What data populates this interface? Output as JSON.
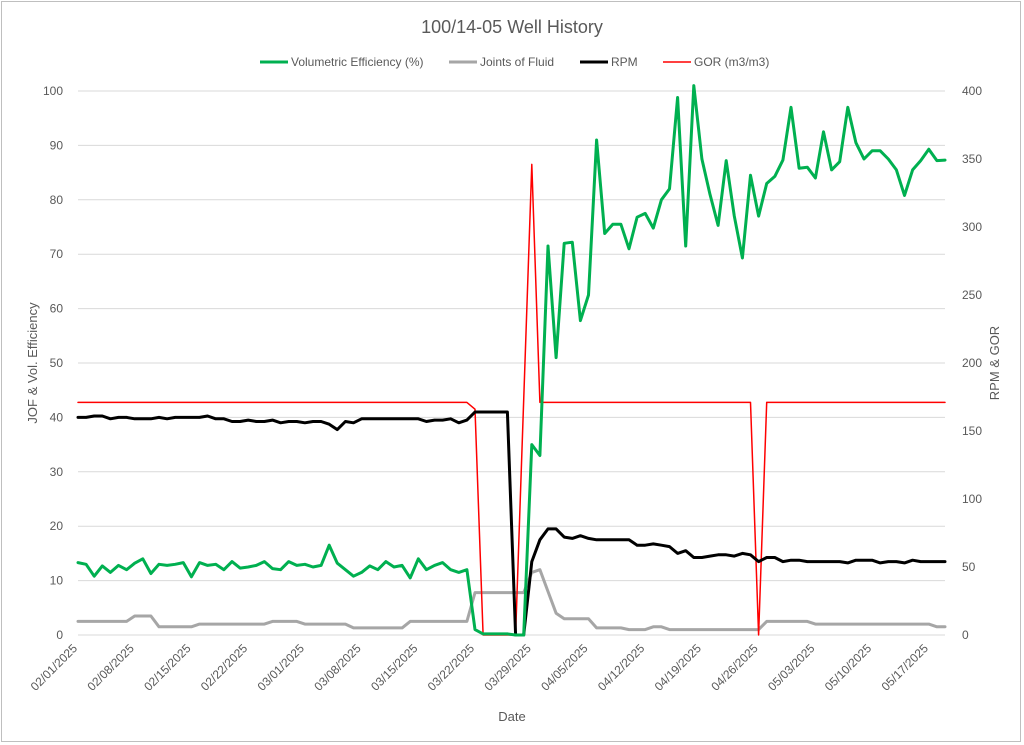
{
  "chart_data": {
    "type": "line",
    "title": "100/14-05 Well History",
    "xlabel": "Date",
    "ylabel_left": "JOF & Vol. Efficiency",
    "ylabel_right": "RPM & GOR",
    "ylim_left": [
      0,
      100
    ],
    "ylim_right": [
      0,
      400
    ],
    "y_ticks_left": [
      "0",
      "10",
      "20",
      "30",
      "40",
      "50",
      "60",
      "70",
      "80",
      "90",
      "100"
    ],
    "y_ticks_right": [
      "0",
      "50",
      "100",
      "150",
      "200",
      "250",
      "300",
      "350",
      "400"
    ],
    "x_start": "2025-02-01",
    "x_end": "2025-05-19",
    "x_ticks": [
      "02/01/2025",
      "02/08/2025",
      "02/15/2025",
      "02/22/2025",
      "03/01/2025",
      "03/08/2025",
      "03/15/2025",
      "03/22/2025",
      "03/29/2025",
      "04/05/2025",
      "04/12/2025",
      "04/19/2025",
      "04/26/2025",
      "05/03/2025",
      "05/10/2025",
      "05/17/2025"
    ],
    "gridlines": "horizontal",
    "legend_position": "top",
    "series": [
      {
        "name": "Volumetric Efficiency (%)",
        "axis": "left",
        "color": "#00b050",
        "points": [
          [
            "2025-02-01",
            13.3
          ],
          [
            "2025-02-02",
            13
          ],
          [
            "2025-02-03",
            10.8
          ],
          [
            "2025-02-04",
            12.7
          ],
          [
            "2025-02-05",
            11.5
          ],
          [
            "2025-02-06",
            12.8
          ],
          [
            "2025-02-07",
            12
          ],
          [
            "2025-02-08",
            13.2
          ],
          [
            "2025-02-09",
            14
          ],
          [
            "2025-02-10",
            11.3
          ],
          [
            "2025-02-11",
            13
          ],
          [
            "2025-02-12",
            12.8
          ],
          [
            "2025-02-13",
            13
          ],
          [
            "2025-02-14",
            13.3
          ],
          [
            "2025-02-15",
            10.7
          ],
          [
            "2025-02-16",
            13.3
          ],
          [
            "2025-02-17",
            12.8
          ],
          [
            "2025-02-18",
            13
          ],
          [
            "2025-02-19",
            12
          ],
          [
            "2025-02-20",
            13.5
          ],
          [
            "2025-02-21",
            12.3
          ],
          [
            "2025-02-22",
            12.5
          ],
          [
            "2025-02-23",
            12.8
          ],
          [
            "2025-02-24",
            13.5
          ],
          [
            "2025-02-25",
            12.2
          ],
          [
            "2025-02-26",
            12
          ],
          [
            "2025-02-27",
            13.5
          ],
          [
            "2025-02-28",
            12.8
          ],
          [
            "2025-03-01",
            13
          ],
          [
            "2025-03-02",
            12.5
          ],
          [
            "2025-03-03",
            12.8
          ],
          [
            "2025-03-04",
            16.5
          ],
          [
            "2025-03-05",
            13.2
          ],
          [
            "2025-03-06",
            12
          ],
          [
            "2025-03-07",
            10.8
          ],
          [
            "2025-03-08",
            11.5
          ],
          [
            "2025-03-09",
            12.7
          ],
          [
            "2025-03-10",
            12
          ],
          [
            "2025-03-11",
            13.5
          ],
          [
            "2025-03-12",
            12.5
          ],
          [
            "2025-03-13",
            12.8
          ],
          [
            "2025-03-14",
            10.5
          ],
          [
            "2025-03-15",
            14
          ],
          [
            "2025-03-16",
            12
          ],
          [
            "2025-03-17",
            12.8
          ],
          [
            "2025-03-18",
            13.3
          ],
          [
            "2025-03-19",
            12
          ],
          [
            "2025-03-20",
            11.5
          ],
          [
            "2025-03-21",
            12
          ],
          [
            "2025-03-22",
            1
          ],
          [
            "2025-03-23",
            0.2
          ],
          [
            "2025-03-24",
            0.2
          ],
          [
            "2025-03-25",
            0.2
          ],
          [
            "2025-03-26",
            0.2
          ],
          [
            "2025-03-27",
            0
          ],
          [
            "2025-03-28",
            0
          ],
          [
            "2025-03-29",
            35
          ],
          [
            "2025-03-30",
            33
          ],
          [
            "2025-03-31",
            71.5
          ],
          [
            "2025-04-01",
            51
          ],
          [
            "2025-04-02",
            72
          ],
          [
            "2025-04-03",
            72.2
          ],
          [
            "2025-04-04",
            57.8
          ],
          [
            "2025-04-05",
            62.5
          ],
          [
            "2025-04-06",
            91
          ],
          [
            "2025-04-07",
            73.8
          ],
          [
            "2025-04-08",
            75.5
          ],
          [
            "2025-04-09",
            75.5
          ],
          [
            "2025-04-10",
            71
          ],
          [
            "2025-04-11",
            76.8
          ],
          [
            "2025-04-12",
            77.5
          ],
          [
            "2025-04-13",
            74.8
          ],
          [
            "2025-04-14",
            80
          ],
          [
            "2025-04-15",
            82
          ],
          [
            "2025-04-16",
            98.8
          ],
          [
            "2025-04-17",
            71.5
          ],
          [
            "2025-04-18",
            101
          ],
          [
            "2025-04-19",
            87.5
          ],
          [
            "2025-04-20",
            81
          ],
          [
            "2025-04-21",
            75.3
          ],
          [
            "2025-04-22",
            87.2
          ],
          [
            "2025-04-23",
            77
          ],
          [
            "2025-04-24",
            69.3
          ],
          [
            "2025-04-25",
            84.5
          ],
          [
            "2025-04-26",
            77
          ],
          [
            "2025-04-27",
            83
          ],
          [
            "2025-04-28",
            84.3
          ],
          [
            "2025-04-29",
            87.3
          ],
          [
            "2025-04-30",
            97
          ],
          [
            "2025-05-01",
            85.8
          ],
          [
            "2025-05-02",
            86
          ],
          [
            "2025-05-03",
            84
          ],
          [
            "2025-05-04",
            92.5
          ],
          [
            "2025-05-05",
            85.5
          ],
          [
            "2025-05-06",
            87
          ],
          [
            "2025-05-07",
            97
          ],
          [
            "2025-05-08",
            90.5
          ],
          [
            "2025-05-09",
            87.5
          ],
          [
            "2025-05-10",
            89
          ],
          [
            "2025-05-11",
            89
          ],
          [
            "2025-05-12",
            87.5
          ],
          [
            "2025-05-13",
            85.5
          ],
          [
            "2025-05-14",
            80.8
          ],
          [
            "2025-05-15",
            85.5
          ],
          [
            "2025-05-16",
            87.2
          ],
          [
            "2025-05-17",
            89.3
          ],
          [
            "2025-05-18",
            87.2
          ],
          [
            "2025-05-19",
            87.3
          ]
        ]
      },
      {
        "name": "Joints of Fluid",
        "axis": "left",
        "color": "#a6a6a6",
        "points": [
          [
            "2025-02-01",
            2.5
          ],
          [
            "2025-02-07",
            2.5
          ],
          [
            "2025-02-08",
            3.5
          ],
          [
            "2025-02-10",
            3.5
          ],
          [
            "2025-02-11",
            1.5
          ],
          [
            "2025-02-15",
            1.5
          ],
          [
            "2025-02-16",
            2
          ],
          [
            "2025-02-24",
            2
          ],
          [
            "2025-02-25",
            2.5
          ],
          [
            "2025-02-28",
            2.5
          ],
          [
            "2025-03-01",
            2
          ],
          [
            "2025-03-06",
            2
          ],
          [
            "2025-03-07",
            1.3
          ],
          [
            "2025-03-13",
            1.3
          ],
          [
            "2025-03-14",
            2.5
          ],
          [
            "2025-03-21",
            2.5
          ],
          [
            "2025-03-22",
            7.8
          ],
          [
            "2025-03-28",
            7.8
          ],
          [
            "2025-03-29",
            11.5
          ],
          [
            "2025-03-30",
            12
          ],
          [
            "2025-03-31",
            8
          ],
          [
            "2025-04-01",
            4
          ],
          [
            "2025-04-02",
            3
          ],
          [
            "2025-04-05",
            3
          ],
          [
            "2025-04-06",
            1.3
          ],
          [
            "2025-04-09",
            1.3
          ],
          [
            "2025-04-10",
            1
          ],
          [
            "2025-04-12",
            1
          ],
          [
            "2025-04-13",
            1.5
          ],
          [
            "2025-04-14",
            1.5
          ],
          [
            "2025-04-15",
            1
          ],
          [
            "2025-04-26",
            1
          ],
          [
            "2025-04-27",
            2.5
          ],
          [
            "2025-05-02",
            2.5
          ],
          [
            "2025-05-03",
            2
          ],
          [
            "2025-05-17",
            2
          ],
          [
            "2025-05-18",
            1.5
          ],
          [
            "2025-05-19",
            1.5
          ]
        ]
      },
      {
        "name": "RPM",
        "axis": "right",
        "color": "#000000",
        "points": [
          [
            "2025-02-01",
            160
          ],
          [
            "2025-02-02",
            160
          ],
          [
            "2025-02-03",
            161
          ],
          [
            "2025-02-04",
            161
          ],
          [
            "2025-02-05",
            159
          ],
          [
            "2025-02-06",
            160
          ],
          [
            "2025-02-07",
            160
          ],
          [
            "2025-02-08",
            159
          ],
          [
            "2025-02-09",
            159
          ],
          [
            "2025-02-10",
            159
          ],
          [
            "2025-02-11",
            160
          ],
          [
            "2025-02-12",
            159
          ],
          [
            "2025-02-13",
            160
          ],
          [
            "2025-02-14",
            160
          ],
          [
            "2025-02-15",
            160
          ],
          [
            "2025-02-16",
            160
          ],
          [
            "2025-02-17",
            161
          ],
          [
            "2025-02-18",
            159
          ],
          [
            "2025-02-19",
            159
          ],
          [
            "2025-02-20",
            157
          ],
          [
            "2025-02-21",
            157
          ],
          [
            "2025-02-22",
            158
          ],
          [
            "2025-02-23",
            157
          ],
          [
            "2025-02-24",
            157
          ],
          [
            "2025-02-25",
            158
          ],
          [
            "2025-02-26",
            156
          ],
          [
            "2025-02-27",
            157
          ],
          [
            "2025-02-28",
            157
          ],
          [
            "2025-03-01",
            156
          ],
          [
            "2025-03-02",
            157
          ],
          [
            "2025-03-03",
            157
          ],
          [
            "2025-03-04",
            155
          ],
          [
            "2025-03-05",
            151
          ],
          [
            "2025-03-06",
            157
          ],
          [
            "2025-03-07",
            156
          ],
          [
            "2025-03-08",
            159
          ],
          [
            "2025-03-09",
            159
          ],
          [
            "2025-03-10",
            159
          ],
          [
            "2025-03-11",
            159
          ],
          [
            "2025-03-12",
            159
          ],
          [
            "2025-03-13",
            159
          ],
          [
            "2025-03-14",
            159
          ],
          [
            "2025-03-15",
            159
          ],
          [
            "2025-03-16",
            157
          ],
          [
            "2025-03-17",
            158
          ],
          [
            "2025-03-18",
            158
          ],
          [
            "2025-03-19",
            159
          ],
          [
            "2025-03-20",
            156
          ],
          [
            "2025-03-21",
            158
          ],
          [
            "2025-03-22",
            164
          ],
          [
            "2025-03-23",
            164
          ],
          [
            "2025-03-24",
            164
          ],
          [
            "2025-03-25",
            164
          ],
          [
            "2025-03-26",
            164
          ],
          [
            "2025-03-27",
            0
          ],
          [
            "2025-03-28",
            0
          ],
          [
            "2025-03-29",
            54
          ],
          [
            "2025-03-30",
            70
          ],
          [
            "2025-03-31",
            78
          ],
          [
            "2025-04-01",
            78
          ],
          [
            "2025-04-02",
            72
          ],
          [
            "2025-04-03",
            71
          ],
          [
            "2025-04-04",
            73
          ],
          [
            "2025-04-05",
            71
          ],
          [
            "2025-04-06",
            70
          ],
          [
            "2025-04-07",
            70
          ],
          [
            "2025-04-08",
            70
          ],
          [
            "2025-04-09",
            70
          ],
          [
            "2025-04-10",
            70
          ],
          [
            "2025-04-11",
            66
          ],
          [
            "2025-04-12",
            66
          ],
          [
            "2025-04-13",
            67
          ],
          [
            "2025-04-14",
            66
          ],
          [
            "2025-04-15",
            65
          ],
          [
            "2025-04-16",
            60
          ],
          [
            "2025-04-17",
            62
          ],
          [
            "2025-04-18",
            57
          ],
          [
            "2025-04-19",
            57
          ],
          [
            "2025-04-20",
            58
          ],
          [
            "2025-04-21",
            59
          ],
          [
            "2025-04-22",
            59
          ],
          [
            "2025-04-23",
            58
          ],
          [
            "2025-04-24",
            60
          ],
          [
            "2025-04-25",
            59
          ],
          [
            "2025-04-26",
            54
          ],
          [
            "2025-04-27",
            57
          ],
          [
            "2025-04-28",
            57
          ],
          [
            "2025-04-29",
            54
          ],
          [
            "2025-04-30",
            55
          ],
          [
            "2025-05-01",
            55
          ],
          [
            "2025-05-02",
            54
          ],
          [
            "2025-05-03",
            54
          ],
          [
            "2025-05-04",
            54
          ],
          [
            "2025-05-05",
            54
          ],
          [
            "2025-05-06",
            54
          ],
          [
            "2025-05-07",
            53
          ],
          [
            "2025-05-08",
            55
          ],
          [
            "2025-05-09",
            55
          ],
          [
            "2025-05-10",
            55
          ],
          [
            "2025-05-11",
            53
          ],
          [
            "2025-05-12",
            54
          ],
          [
            "2025-05-13",
            54
          ],
          [
            "2025-05-14",
            53
          ],
          [
            "2025-05-15",
            55
          ],
          [
            "2025-05-16",
            54
          ],
          [
            "2025-05-17",
            54
          ],
          [
            "2025-05-18",
            54
          ],
          [
            "2025-05-19",
            54
          ]
        ]
      },
      {
        "name": "GOR (m3/m3)",
        "axis": "right",
        "color": "#ff0000",
        "points": [
          [
            "2025-02-01",
            171
          ],
          [
            "2025-03-21",
            171
          ],
          [
            "2025-03-22",
            166
          ],
          [
            "2025-03-23",
            0
          ],
          [
            "2025-03-26",
            0
          ],
          [
            "2025-03-27",
            0
          ],
          [
            "2025-03-29",
            346
          ],
          [
            "2025-03-30",
            171
          ],
          [
            "2025-04-25",
            171
          ],
          [
            "2025-04-26",
            0
          ],
          [
            "2025-04-27",
            171
          ],
          [
            "2025-05-19",
            171
          ]
        ]
      }
    ]
  }
}
